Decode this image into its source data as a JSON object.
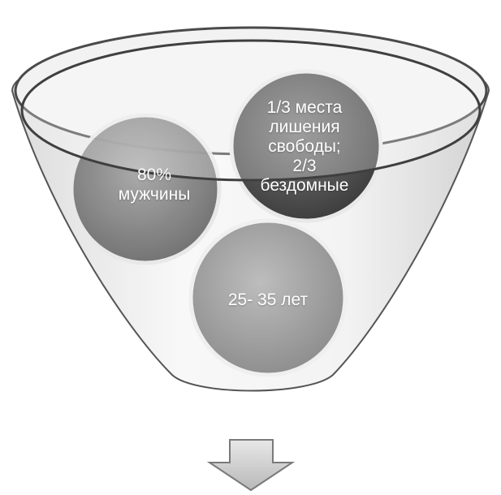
{
  "diagram": {
    "type": "funnel",
    "items": [
      {
        "id": "men",
        "text": "80%\nмужчины"
      },
      {
        "id": "prison",
        "text": "1/3 места\nлишения\nсвободы;\n2/3\nбездомные"
      },
      {
        "id": "age",
        "text": "25- 35 лет"
      }
    ],
    "colors": {
      "funnel_rim": "#4a4a4a",
      "funnel_fill": "#ececec",
      "circle_dark": "#555555",
      "circle_mid": "#8a8a8a",
      "circle_light": "#a8a8a8",
      "arrow_fill": "#cfcfcf",
      "arrow_stroke": "#7a7a7a"
    },
    "icons": {
      "output_arrow": "down-arrow-icon"
    }
  }
}
